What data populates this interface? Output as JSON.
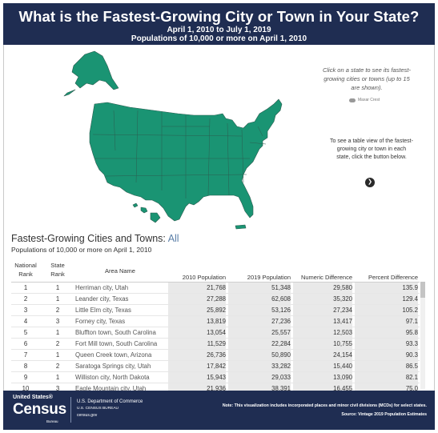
{
  "header": {
    "title": "What is the Fastest-Growing City or Town in Your State?",
    "subtitle1": "April 1, 2010 to July 1, 2019",
    "subtitle2": "Populations of 10,000 or more on April 1, 2010"
  },
  "map": {
    "fill_color": "#1a9473",
    "border_color": "#2c5d50",
    "instructions": "Click on a state to see its fastest-growing cities or towns (up to 15 are shown).",
    "maxar_label": "Maxar Crest",
    "table_instructions": "To see a table view of the fastest-growing city or town in each state, click the button below.",
    "button_icon": "chevron-right-icon"
  },
  "table": {
    "title_prefix": "Fastest-Growing Cities and Towns: ",
    "title_filter": "All",
    "subtitle": "Populations of 10,000 or more on April 1, 2010",
    "columns": {
      "national_rank": "National Rank",
      "state_rank": "State Rank",
      "area_name": "Area Name",
      "pop_2010": "2010 Population",
      "pop_2019": "2019 Population",
      "numeric_diff": "Numeric Difference",
      "percent_diff": "Percent Difference"
    },
    "rows": [
      {
        "nat": "1",
        "st": "1",
        "area": "Herriman city, Utah",
        "p10": "21,768",
        "p19": "51,348",
        "diff": "29,580",
        "pct": "135.9"
      },
      {
        "nat": "2",
        "st": "1",
        "area": "Leander city, Texas",
        "p10": "27,288",
        "p19": "62,608",
        "diff": "35,320",
        "pct": "129.4"
      },
      {
        "nat": "3",
        "st": "2",
        "area": "Little Elm city, Texas",
        "p10": "25,892",
        "p19": "53,126",
        "diff": "27,234",
        "pct": "105.2"
      },
      {
        "nat": "4",
        "st": "3",
        "area": "Forney city, Texas",
        "p10": "13,819",
        "p19": "27,236",
        "diff": "13,417",
        "pct": "97.1"
      },
      {
        "nat": "5",
        "st": "1",
        "area": "Bluffton town, South Carolina",
        "p10": "13,054",
        "p19": "25,557",
        "diff": "12,503",
        "pct": "95.8"
      },
      {
        "nat": "6",
        "st": "2",
        "area": "Fort Mill town, South Carolina",
        "p10": "11,529",
        "p19": "22,284",
        "diff": "10,755",
        "pct": "93.3"
      },
      {
        "nat": "7",
        "st": "1",
        "area": "Queen Creek town, Arizona",
        "p10": "26,736",
        "p19": "50,890",
        "diff": "24,154",
        "pct": "90.3"
      },
      {
        "nat": "8",
        "st": "2",
        "area": "Saratoga Springs city, Utah",
        "p10": "17,842",
        "p19": "33,282",
        "diff": "15,440",
        "pct": "86.5"
      },
      {
        "nat": "9",
        "st": "1",
        "area": "Williston city, North Dakota",
        "p10": "15,943",
        "p19": "29,033",
        "diff": "13,090",
        "pct": "82.1"
      },
      {
        "nat": "10",
        "st": "3",
        "area": "Eagle Mountain city, Utah",
        "p10": "21,936",
        "p19": "38,391",
        "diff": "16,455",
        "pct": "75.0"
      }
    ]
  },
  "footer": {
    "logo_top": "United States®",
    "logo_main": "Census",
    "logo_bureau": "Bureau",
    "dept1": "U.S. Department of Commerce",
    "dept2": "U.S. CENSUS BUREAU",
    "dept3": "census.gov",
    "note": "Note: This visualization includes incorporated places and minor civil divisions (MCDs) for select states.",
    "source": "Source: Vintage 2019 Population Estimates"
  }
}
